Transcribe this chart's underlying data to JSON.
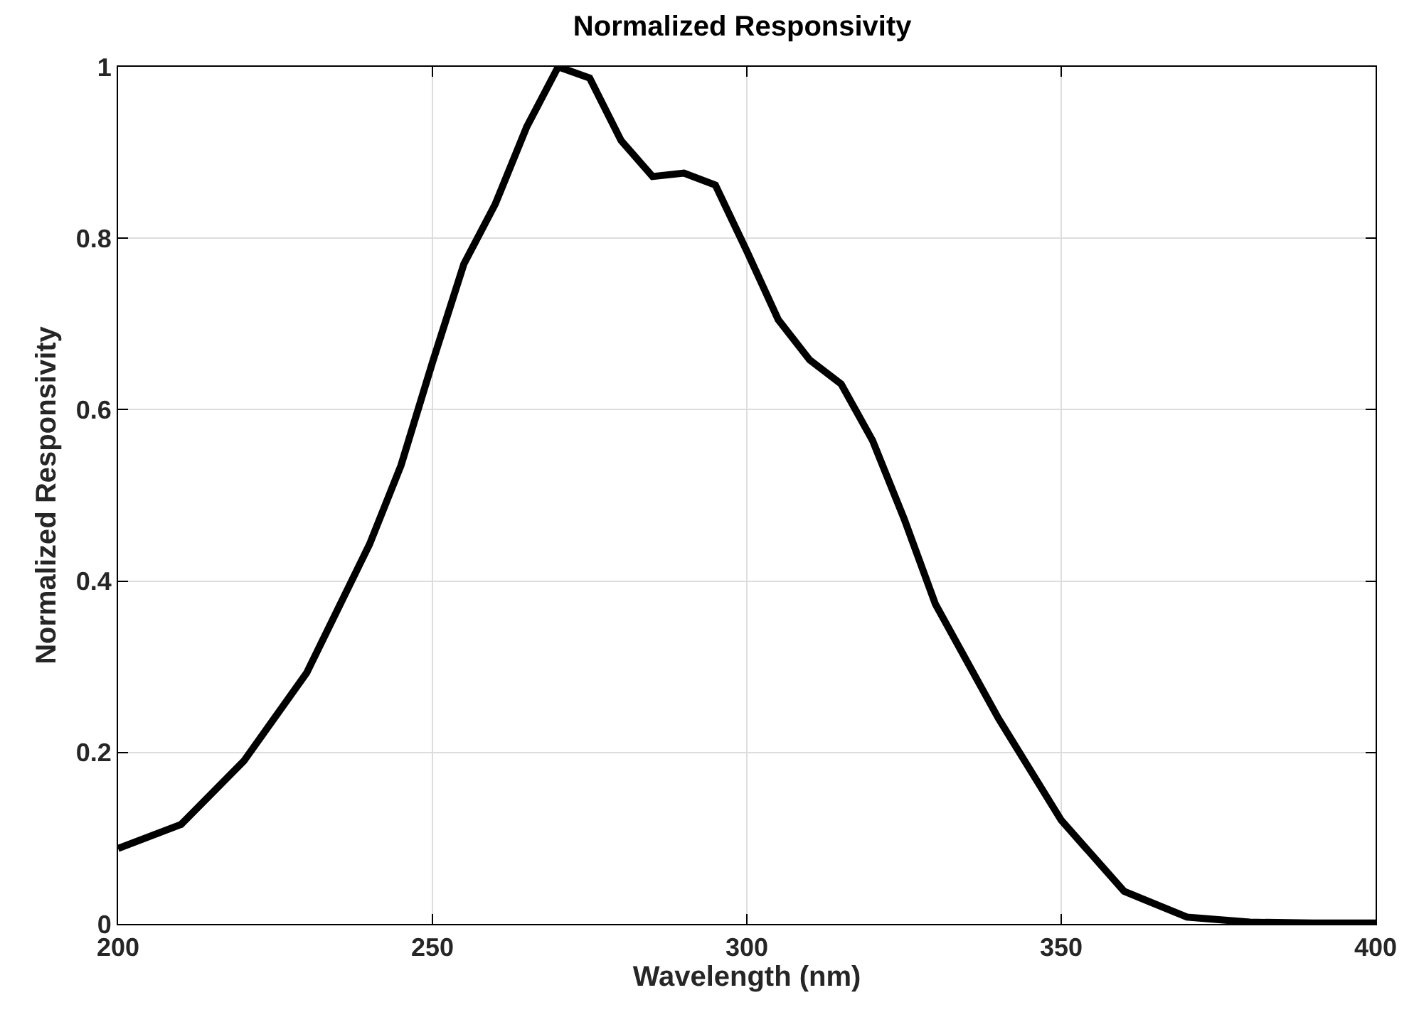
{
  "chart_data": {
    "type": "line",
    "title": "Normalized Responsivity",
    "xlabel": "Wavelength (nm)",
    "ylabel": "Normalized Responsivity",
    "x": [
      200,
      210,
      220,
      230,
      240,
      245,
      250,
      255,
      260,
      265,
      270,
      275,
      280,
      285,
      290,
      295,
      300,
      305,
      310,
      315,
      320,
      325,
      330,
      340,
      350,
      360,
      370,
      380,
      390,
      400
    ],
    "series": [
      {
        "color": "#000000",
        "values": [
          0.088,
          0.116,
          0.19,
          0.293,
          0.443,
          0.535,
          0.655,
          0.77,
          0.84,
          0.93,
          1.0,
          0.987,
          0.914,
          0.872,
          0.876,
          0.862,
          0.785,
          0.705,
          0.658,
          0.63,
          0.564,
          0.473,
          0.373,
          0.24,
          0.121,
          0.038,
          0.008,
          0.002,
          0.001,
          0.001
        ]
      }
    ],
    "xlim": [
      200,
      400
    ],
    "xticks": [
      200,
      250,
      300,
      350,
      400
    ],
    "ylim": [
      0,
      1
    ],
    "yticks": [
      0,
      0.2,
      0.4,
      0.6,
      0.8,
      1
    ],
    "grid": true,
    "marker": "none",
    "line_style": "solid"
  }
}
